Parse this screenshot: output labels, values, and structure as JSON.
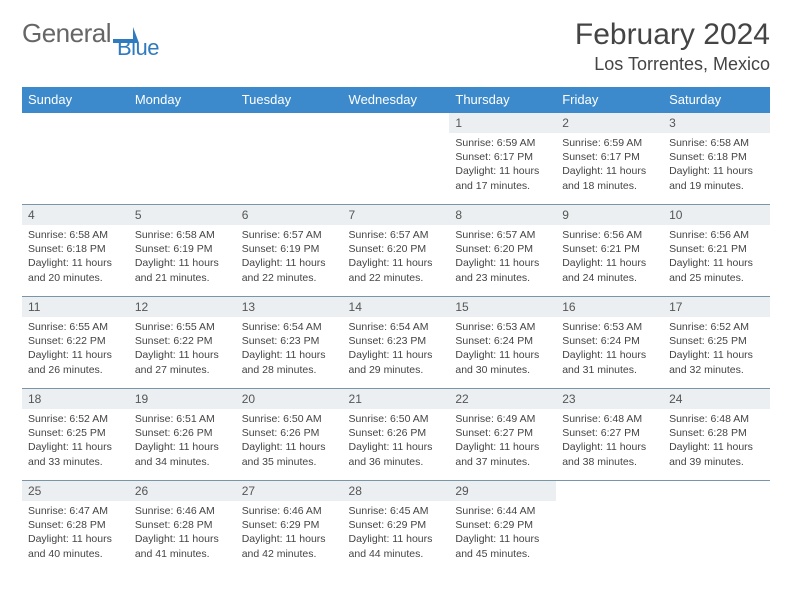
{
  "brand": {
    "part1": "General",
    "part2": "Blue"
  },
  "title": "February 2024",
  "location": "Los Torrentes, Mexico",
  "colors": {
    "header_bg": "#3c8acb",
    "header_text": "#ffffff",
    "daynum_bg": "#eceff1",
    "border": "#7a94a8",
    "text": "#444444",
    "brand_accent": "#2f7bbf"
  },
  "typography": {
    "title_fontsize": 30,
    "location_fontsize": 18,
    "header_fontsize": 13,
    "daynum_fontsize": 12,
    "body_fontsize": 10.5
  },
  "day_headers": [
    "Sunday",
    "Monday",
    "Tuesday",
    "Wednesday",
    "Thursday",
    "Friday",
    "Saturday"
  ],
  "weeks": [
    [
      {
        "empty": true
      },
      {
        "empty": true
      },
      {
        "empty": true
      },
      {
        "empty": true
      },
      {
        "n": "1",
        "sr": "6:59 AM",
        "ss": "6:17 PM",
        "dl": "11 hours and 17 minutes."
      },
      {
        "n": "2",
        "sr": "6:59 AM",
        "ss": "6:17 PM",
        "dl": "11 hours and 18 minutes."
      },
      {
        "n": "3",
        "sr": "6:58 AM",
        "ss": "6:18 PM",
        "dl": "11 hours and 19 minutes."
      }
    ],
    [
      {
        "n": "4",
        "sr": "6:58 AM",
        "ss": "6:18 PM",
        "dl": "11 hours and 20 minutes."
      },
      {
        "n": "5",
        "sr": "6:58 AM",
        "ss": "6:19 PM",
        "dl": "11 hours and 21 minutes."
      },
      {
        "n": "6",
        "sr": "6:57 AM",
        "ss": "6:19 PM",
        "dl": "11 hours and 22 minutes."
      },
      {
        "n": "7",
        "sr": "6:57 AM",
        "ss": "6:20 PM",
        "dl": "11 hours and 22 minutes."
      },
      {
        "n": "8",
        "sr": "6:57 AM",
        "ss": "6:20 PM",
        "dl": "11 hours and 23 minutes."
      },
      {
        "n": "9",
        "sr": "6:56 AM",
        "ss": "6:21 PM",
        "dl": "11 hours and 24 minutes."
      },
      {
        "n": "10",
        "sr": "6:56 AM",
        "ss": "6:21 PM",
        "dl": "11 hours and 25 minutes."
      }
    ],
    [
      {
        "n": "11",
        "sr": "6:55 AM",
        "ss": "6:22 PM",
        "dl": "11 hours and 26 minutes."
      },
      {
        "n": "12",
        "sr": "6:55 AM",
        "ss": "6:22 PM",
        "dl": "11 hours and 27 minutes."
      },
      {
        "n": "13",
        "sr": "6:54 AM",
        "ss": "6:23 PM",
        "dl": "11 hours and 28 minutes."
      },
      {
        "n": "14",
        "sr": "6:54 AM",
        "ss": "6:23 PM",
        "dl": "11 hours and 29 minutes."
      },
      {
        "n": "15",
        "sr": "6:53 AM",
        "ss": "6:24 PM",
        "dl": "11 hours and 30 minutes."
      },
      {
        "n": "16",
        "sr": "6:53 AM",
        "ss": "6:24 PM",
        "dl": "11 hours and 31 minutes."
      },
      {
        "n": "17",
        "sr": "6:52 AM",
        "ss": "6:25 PM",
        "dl": "11 hours and 32 minutes."
      }
    ],
    [
      {
        "n": "18",
        "sr": "6:52 AM",
        "ss": "6:25 PM",
        "dl": "11 hours and 33 minutes."
      },
      {
        "n": "19",
        "sr": "6:51 AM",
        "ss": "6:26 PM",
        "dl": "11 hours and 34 minutes."
      },
      {
        "n": "20",
        "sr": "6:50 AM",
        "ss": "6:26 PM",
        "dl": "11 hours and 35 minutes."
      },
      {
        "n": "21",
        "sr": "6:50 AM",
        "ss": "6:26 PM",
        "dl": "11 hours and 36 minutes."
      },
      {
        "n": "22",
        "sr": "6:49 AM",
        "ss": "6:27 PM",
        "dl": "11 hours and 37 minutes."
      },
      {
        "n": "23",
        "sr": "6:48 AM",
        "ss": "6:27 PM",
        "dl": "11 hours and 38 minutes."
      },
      {
        "n": "24",
        "sr": "6:48 AM",
        "ss": "6:28 PM",
        "dl": "11 hours and 39 minutes."
      }
    ],
    [
      {
        "n": "25",
        "sr": "6:47 AM",
        "ss": "6:28 PM",
        "dl": "11 hours and 40 minutes."
      },
      {
        "n": "26",
        "sr": "6:46 AM",
        "ss": "6:28 PM",
        "dl": "11 hours and 41 minutes."
      },
      {
        "n": "27",
        "sr": "6:46 AM",
        "ss": "6:29 PM",
        "dl": "11 hours and 42 minutes."
      },
      {
        "n": "28",
        "sr": "6:45 AM",
        "ss": "6:29 PM",
        "dl": "11 hours and 44 minutes."
      },
      {
        "n": "29",
        "sr": "6:44 AM",
        "ss": "6:29 PM",
        "dl": "11 hours and 45 minutes."
      },
      {
        "empty": true
      },
      {
        "empty": true
      }
    ]
  ],
  "labels": {
    "sunrise": "Sunrise:",
    "sunset": "Sunset:",
    "daylight": "Daylight:"
  }
}
